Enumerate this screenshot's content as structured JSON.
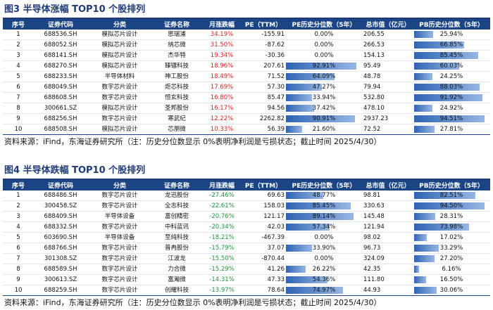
{
  "colors": {
    "header_bg": "#1b4585",
    "title": "#1f3a78",
    "up": "#e02020",
    "down": "#1a9a3a",
    "bar": "#2e63b4"
  },
  "tables": [
    {
      "title": "图3  半导体涨幅 TOP10 个股排列",
      "headers": [
        "序号",
        "证券代码",
        "分类",
        "证券名称",
        "月涨跌幅",
        "PE（TTM）",
        "PE历史分位数（5年）",
        "总市值（亿元）",
        "PB历史分位数（5年）"
      ],
      "direction": "up",
      "rows": [
        {
          "no": "1",
          "code": "688536.SH",
          "category": "模拟芯片设计",
          "name": "思瑞浦",
          "change": "34.19%",
          "pe": "-155.91",
          "pe_pct": "0.00%",
          "pe_pct_val": 0.0,
          "cap": "206.55",
          "pb_pct": "25.94%",
          "pb_pct_val": 25.94
        },
        {
          "no": "2",
          "code": "688052.SH",
          "category": "模拟芯片设计",
          "name": "纳芯微",
          "change": "31.50%",
          "pe": "-87.62",
          "pe_pct": "0.00%",
          "pe_pct_val": 0.0,
          "cap": "266.53",
          "pb_pct": "66.85%",
          "pb_pct_val": 66.85
        },
        {
          "no": "3",
          "code": "688141.SH",
          "category": "模拟芯片设计",
          "name": "杰华特",
          "change": "19.34%",
          "pe": "-30.36",
          "pe_pct": "0.00%",
          "pe_pct_val": 0.0,
          "cap": "154.13",
          "pb_pct": "85.45%",
          "pb_pct_val": 85.45
        },
        {
          "no": "4",
          "code": "688270.SH",
          "category": "模拟芯片设计",
          "name": "臻镭科技",
          "change": "18.96%",
          "pe": "207.61",
          "pe_pct": "92.91%",
          "pe_pct_val": 92.91,
          "cap": "95.49",
          "pb_pct": "60.03%",
          "pb_pct_val": 60.03
        },
        {
          "no": "5",
          "code": "688233.SH",
          "category": "半导体材料",
          "name": "神工股份",
          "change": "18.49%",
          "pe": "71.52",
          "pe_pct": "64.09%",
          "pe_pct_val": 64.09,
          "cap": "48.78",
          "pb_pct": "24.25%",
          "pb_pct_val": 24.25
        },
        {
          "no": "6",
          "code": "688049.SH",
          "category": "数字芯片设计",
          "name": "炬芯科技",
          "change": "17.69%",
          "pe": "57.30",
          "pe_pct": "47.27%",
          "pe_pct_val": 47.27,
          "cap": "79.94",
          "pb_pct": "88.03%",
          "pb_pct_val": 88.03
        },
        {
          "no": "7",
          "code": "688608.SH",
          "category": "数字芯片设计",
          "name": "恒玄科技",
          "change": "16.80%",
          "pe": "85.47",
          "pe_pct": "33.94%",
          "pe_pct_val": 33.94,
          "cap": "532.80",
          "pb_pct": "91.92%",
          "pb_pct_val": 91.92
        },
        {
          "no": "8",
          "code": "300661.SZ",
          "category": "模拟芯片设计",
          "name": "圣邦股份",
          "change": "16.17%",
          "pe": "94.56",
          "pe_pct": "37.42%",
          "pe_pct_val": 37.42,
          "cap": "478.10",
          "pb_pct": "24.92%",
          "pb_pct_val": 24.92
        },
        {
          "no": "9",
          "code": "688256.SH",
          "category": "数字芯片设计",
          "name": "寒武纪",
          "change": "12.22%",
          "pe": "2262.82",
          "pe_pct": "90.91%",
          "pe_pct_val": 90.91,
          "cap": "2937.23",
          "pb_pct": "94.51%",
          "pb_pct_val": 94.51
        },
        {
          "no": "10",
          "code": "688508.SH",
          "category": "模拟芯片设计",
          "name": "芯朋微",
          "change": "10.33%",
          "pe": "56.39",
          "pe_pct": "21.60%",
          "pe_pct_val": 21.6,
          "cap": "72.52",
          "pb_pct": "27.81%",
          "pb_pct_val": 27.81
        }
      ],
      "source": "资料来源：iFind，东海证券研究所（注：历史分位数显示 0%表明净利润是亏损状态；截止时间 2025/4/30）"
    },
    {
      "title": "图4  半导体跌幅 TOP10 个股排列",
      "headers": [
        "序号",
        "证券代码",
        "分类",
        "证券名称",
        "月涨跌幅",
        "PE（TTM）",
        "PE历史分位数（5年）",
        "总市值（亿元）",
        "PB历史分位数（5年）"
      ],
      "direction": "down",
      "rows": [
        {
          "no": "1",
          "code": "688486.SH",
          "category": "数字芯片设计",
          "name": "龙迅股份",
          "change": "-27.46%",
          "pe": "69.63",
          "pe_pct": "48.77%",
          "pe_pct_val": 48.77,
          "cap": "98.81",
          "pb_pct": "82.51%",
          "pb_pct_val": 82.51
        },
        {
          "no": "2",
          "code": "300458.SZ",
          "category": "数字芯片设计",
          "name": "全志科技",
          "change": "-22.61%",
          "pe": "158.03",
          "pe_pct": "85.45%",
          "pe_pct_val": 85.45,
          "cap": "330.63",
          "pb_pct": "94.50%",
          "pb_pct_val": 94.5
        },
        {
          "no": "3",
          "code": "688409.SH",
          "category": "半导体设备",
          "name": "富创精密",
          "change": "-20.76%",
          "pe": "121.17",
          "pe_pct": "89.14%",
          "pe_pct_val": 89.14,
          "cap": "145.48",
          "pb_pct": "28.31%",
          "pb_pct_val": 28.31
        },
        {
          "no": "4",
          "code": "688332.SH",
          "category": "数字芯片设计",
          "name": "中科蓝讯",
          "change": "-20.34%",
          "pe": "42.03",
          "pe_pct": "57.34%",
          "pe_pct_val": 57.34,
          "cap": "121.94",
          "pb_pct": "73.98%",
          "pb_pct_val": 73.98
        },
        {
          "no": "5",
          "code": "603690.SH",
          "category": "半导体设备",
          "name": "至纯科技",
          "change": "-18.21%",
          "pe": "-467.39",
          "pe_pct": "0.00%",
          "pe_pct_val": 0.0,
          "cap": "98.02",
          "pb_pct": "17.02%",
          "pb_pct_val": 17.02
        },
        {
          "no": "6",
          "code": "688766.SH",
          "category": "数字芯片设计",
          "name": "普冉股份",
          "change": "-15.79%",
          "pe": "37.07",
          "pe_pct": "33.90%",
          "pe_pct_val": 33.9,
          "cap": "96.73",
          "pb_pct": "33.29%",
          "pb_pct_val": 33.29
        },
        {
          "no": "7",
          "code": "301308.SZ",
          "category": "数字芯片设计",
          "name": "江波龙",
          "change": "-15.50%",
          "pe": "-870.44",
          "pe_pct": "0.00%",
          "pe_pct_val": 0.0,
          "cap": "324.09",
          "pb_pct": "27.20%",
          "pb_pct_val": 27.2
        },
        {
          "no": "8",
          "code": "688589.SH",
          "category": "数字芯片设计",
          "name": "力合微",
          "change": "-15.29%",
          "pe": "41.26",
          "pe_pct": "26.22%",
          "pe_pct_val": 26.22,
          "cap": "42.35",
          "pb_pct": "6.16%",
          "pb_pct_val": 6.16
        },
        {
          "no": "9",
          "code": "300613.SZ",
          "category": "数字芯片设计",
          "name": "富瀚微",
          "change": "-14.31%",
          "pe": "47.33",
          "pe_pct": "54.36%",
          "pe_pct_val": 54.36,
          "cap": "111.80",
          "pb_pct": "16.50%",
          "pb_pct_val": 16.5
        },
        {
          "no": "10",
          "code": "688259.SH",
          "category": "数字芯片设计",
          "name": "创耀科技",
          "change": "-13.97%",
          "pe": "78.64",
          "pe_pct": "74.97%",
          "pe_pct_val": 74.97,
          "cap": "44.93",
          "pb_pct": "30.06%",
          "pb_pct_val": 30.06
        }
      ],
      "source": "资料来源：iFind，东海证券研究所（注：历史分位数显示 0%表明净利润是亏损状态；截止时间 2025/4/30）"
    }
  ]
}
